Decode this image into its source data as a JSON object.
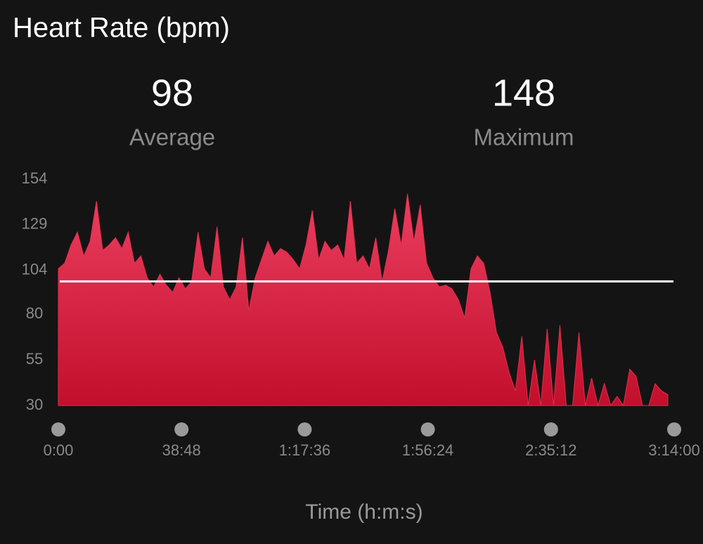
{
  "chart_data": {
    "type": "area",
    "title": "Heart Rate (bpm)",
    "stats": [
      {
        "value": 98,
        "label": "Average"
      },
      {
        "value": 148,
        "label": "Maximum"
      }
    ],
    "x_label": "Time (h:m:s)",
    "x": [
      0,
      120,
      240,
      360,
      480,
      600,
      720,
      840,
      960,
      1080,
      1200,
      1320,
      1440,
      1560,
      1680,
      1800,
      1920,
      2040,
      2160,
      2280,
      2400,
      2520,
      2640,
      2760,
      2880,
      3000,
      3120,
      3240,
      3360,
      3480,
      3600,
      3720,
      3840,
      3960,
      4080,
      4200,
      4320,
      4440,
      4560,
      4680,
      4800,
      4920,
      5040,
      5160,
      5280,
      5400,
      5520,
      5640,
      5760,
      5880,
      6000,
      6120,
      6240,
      6360,
      6480,
      6600,
      6720,
      6840,
      6960,
      7080,
      7200,
      7320,
      7440,
      7560,
      7680,
      7800,
      7920,
      8040,
      8160,
      8280,
      8400,
      8520,
      8640,
      8760,
      8880,
      9000,
      9120,
      9240,
      9360,
      9480,
      9600,
      9720,
      9840,
      9960,
      10080,
      10200,
      10320,
      10440,
      10560,
      10680,
      10800,
      10920,
      11040,
      11160,
      11280,
      11400,
      11520
    ],
    "values": [
      105,
      108,
      118,
      125,
      112,
      120,
      142,
      115,
      118,
      122,
      116,
      125,
      108,
      112,
      100,
      95,
      102,
      96,
      92,
      100,
      94,
      98,
      125,
      105,
      100,
      128,
      95,
      88,
      95,
      122,
      82,
      100,
      110,
      120,
      112,
      116,
      114,
      110,
      105,
      118,
      137,
      110,
      120,
      115,
      118,
      110,
      142,
      108,
      112,
      105,
      122,
      98,
      115,
      138,
      118,
      146,
      120,
      140,
      108,
      100,
      95,
      96,
      94,
      88,
      78,
      105,
      112,
      108,
      92,
      70,
      62,
      48,
      38,
      68,
      30,
      55,
      30,
      72,
      30,
      74,
      30,
      30,
      70,
      30,
      45,
      30,
      42,
      30,
      35,
      30,
      50,
      46,
      30,
      30,
      42,
      38,
      36
    ],
    "color": "#e0304f",
    "xlim": [
      0,
      11640
    ],
    "xticks": [
      {
        "value": 0,
        "label": "0:00"
      },
      {
        "value": 2328,
        "label": "38:48"
      },
      {
        "value": 4656,
        "label": "1:17:36"
      },
      {
        "value": 6984,
        "label": "1:56:24"
      },
      {
        "value": 9312,
        "label": "2:35:12"
      },
      {
        "value": 11640,
        "label": "3:14:00"
      }
    ],
    "ylim": [
      30,
      154
    ],
    "yticks": [
      30,
      55,
      80,
      104,
      129,
      154
    ]
  }
}
